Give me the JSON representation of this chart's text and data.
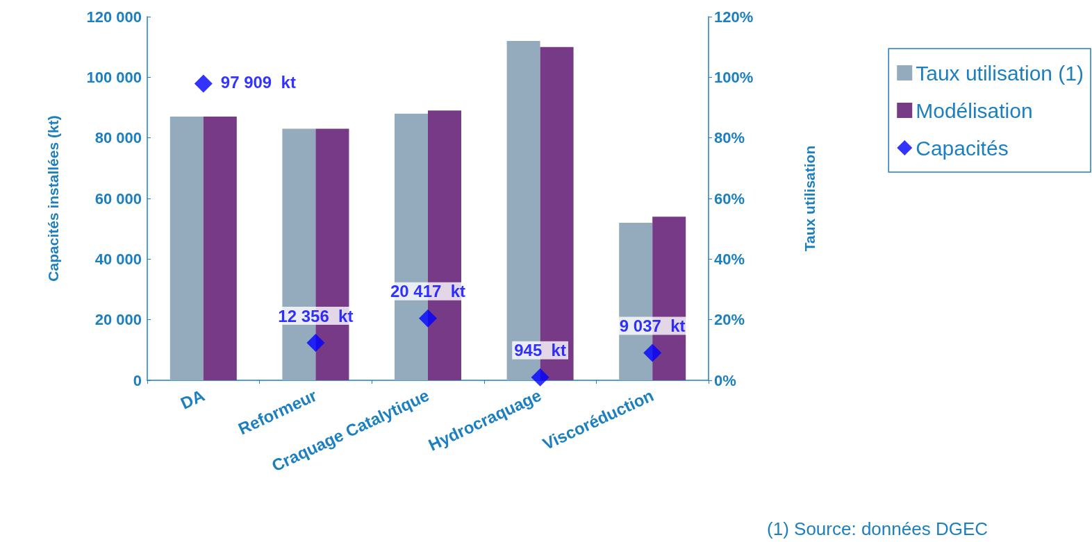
{
  "chart_data": {
    "type": "bar",
    "categories": [
      "DA",
      "Reformeur",
      "Craquage Catalytique",
      "Hydrocraquage",
      "Viscoréduction"
    ],
    "ylabel": "Capacités installées (kt)",
    "y2label": "Taux utilisation",
    "ylim": [
      0,
      120000
    ],
    "yticks": [
      {
        "value": 0,
        "label": "0"
      },
      {
        "value": 20000,
        "label": "20 000"
      },
      {
        "value": 40000,
        "label": "40 000"
      },
      {
        "value": 60000,
        "label": "60 000"
      },
      {
        "value": 80000,
        "label": "80 000"
      },
      {
        "value": 100000,
        "label": "100 000"
      },
      {
        "value": 120000,
        "label": "120 000"
      }
    ],
    "y2lim": [
      0,
      120
    ],
    "y2ticks": [
      {
        "value": 0,
        "label": "0%"
      },
      {
        "value": 20,
        "label": "20%"
      },
      {
        "value": 40,
        "label": "40%"
      },
      {
        "value": 60,
        "label": "60%"
      },
      {
        "value": 80,
        "label": "80%"
      },
      {
        "value": 100,
        "label": "100%"
      },
      {
        "value": 120,
        "label": "120%"
      }
    ],
    "series": [
      {
        "name": "Taux utilisation (1)",
        "axis": "y2",
        "color": "#94aabd",
        "values": [
          87,
          83,
          88,
          112,
          52
        ]
      },
      {
        "name": "Modélisation",
        "axis": "y2",
        "color": "#763a87",
        "values": [
          87,
          83,
          89,
          110,
          54
        ]
      },
      {
        "name": "Capacités",
        "type": "scatter",
        "marker": "diamond",
        "color": "#0000ff",
        "values": [
          97909,
          12356,
          20417,
          945,
          9037
        ],
        "value_labels": [
          "97 909  kt",
          "12 356  kt",
          "20 417  kt",
          "945  kt",
          "9 037  kt"
        ]
      }
    ],
    "grid": false,
    "legend": "top right",
    "annotations": [
      "(1) Source: données DGEC"
    ]
  }
}
